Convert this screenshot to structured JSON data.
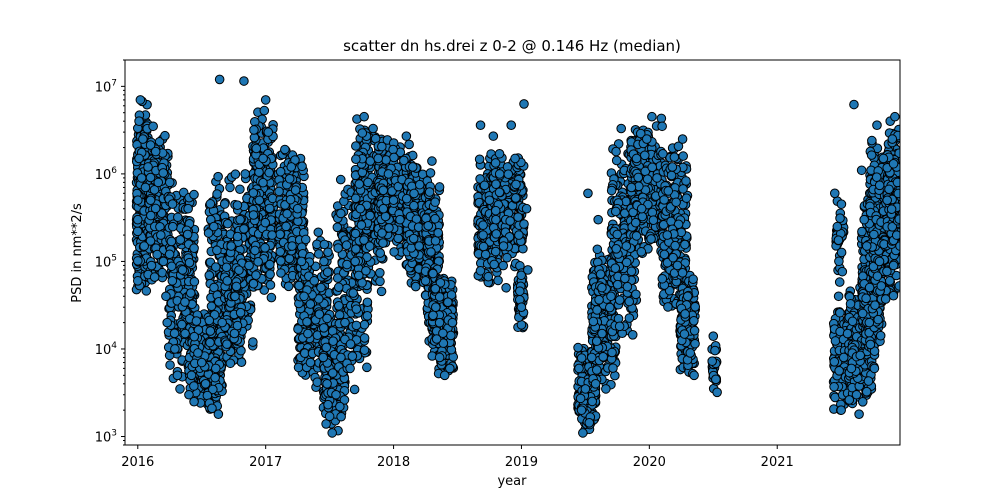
{
  "chart_data": {
    "type": "scatter",
    "title": "scatter dn hs.drei z 0-2 @ 0.146 Hz (median)",
    "xlabel": "year",
    "ylabel": "PSD in nm**2/s",
    "y_scale": "log",
    "xlim": [
      2015.9,
      2021.96
    ],
    "ylim": [
      800,
      20000000
    ],
    "x_ticks": [
      {
        "value": 2016,
        "label": "2016"
      },
      {
        "value": 2017,
        "label": "2017"
      },
      {
        "value": 2018,
        "label": "2018"
      },
      {
        "value": 2019,
        "label": "2019"
      },
      {
        "value": 2020,
        "label": "2020"
      },
      {
        "value": 2021,
        "label": "2021"
      }
    ],
    "y_ticks": [
      {
        "value": 1000,
        "base": "10",
        "exp": "3"
      },
      {
        "value": 10000,
        "base": "10",
        "exp": "4"
      },
      {
        "value": 100000,
        "base": "10",
        "exp": "5"
      },
      {
        "value": 1000000,
        "base": "10",
        "exp": "6"
      },
      {
        "value": 10000000,
        "base": "10",
        "exp": "7"
      }
    ],
    "grid": false,
    "legend": "none",
    "marker_color": "#1f77b4",
    "marker_edge_color": "#000000",
    "series": [
      {
        "points": [
          [
            2016.0,
            60000
          ],
          [
            2016.0,
            300000
          ],
          [
            2016.01,
            1500000
          ],
          [
            2016.01,
            4000000
          ],
          [
            2016.02,
            7000000
          ],
          [
            2016.03,
            900000
          ],
          [
            2016.04,
            2500000
          ],
          [
            2016.05,
            150000
          ],
          [
            2016.06,
            700000
          ],
          [
            2016.08,
            1200000
          ],
          [
            2016.1,
            500000
          ],
          [
            2016.12,
            3500000
          ],
          [
            2016.14,
            1800000
          ],
          [
            2016.16,
            800000
          ],
          [
            2016.18,
            200000
          ],
          [
            2016.2,
            100000
          ],
          [
            2016.22,
            40000
          ],
          [
            2016.23,
            20000
          ],
          [
            2016.25,
            800000
          ],
          [
            2016.27,
            60000
          ],
          [
            2016.29,
            10000
          ],
          [
            2016.31,
            5000
          ],
          [
            2016.33,
            3500
          ],
          [
            2016.35,
            80000
          ],
          [
            2016.37,
            15000
          ],
          [
            2016.4,
            3000
          ],
          [
            2016.42,
            5000
          ],
          [
            2016.44,
            2500
          ],
          [
            2016.47,
            9000
          ],
          [
            2016.5,
            7000
          ],
          [
            2016.53,
            4000
          ],
          [
            2016.56,
            2400
          ],
          [
            2016.58,
            2100
          ],
          [
            2016.61,
            6000
          ],
          [
            2016.63,
            1800
          ],
          [
            2016.64,
            12000000
          ],
          [
            2016.66,
            20000
          ],
          [
            2016.7,
            60000
          ],
          [
            2016.73,
            150000
          ],
          [
            2016.76,
            40000
          ],
          [
            2016.8,
            300000
          ],
          [
            2016.83,
            11500000
          ],
          [
            2016.84,
            1000000
          ],
          [
            2016.87,
            90000
          ],
          [
            2016.9,
            12000
          ],
          [
            2016.95,
            500000
          ],
          [
            2016.98,
            1500000
          ],
          [
            2017.0,
            7000000
          ],
          [
            2017.02,
            3000000
          ],
          [
            2017.05,
            200000
          ],
          [
            2017.15,
            1900000
          ],
          [
            2017.2,
            1200000
          ],
          [
            2017.25,
            400000
          ],
          [
            2017.28,
            100000
          ],
          [
            2017.3,
            40000
          ],
          [
            2017.33,
            15000
          ],
          [
            2017.35,
            7000
          ],
          [
            2017.38,
            60000
          ],
          [
            2017.42,
            25000
          ],
          [
            2017.45,
            8000
          ],
          [
            2017.48,
            4000
          ],
          [
            2017.5,
            1700
          ],
          [
            2017.52,
            1100
          ],
          [
            2017.55,
            3000
          ],
          [
            2017.58,
            2200
          ],
          [
            2017.62,
            20000
          ],
          [
            2017.66,
            6000
          ],
          [
            2017.7,
            100000
          ],
          [
            2017.74,
            400000
          ],
          [
            2017.77,
            4500000
          ],
          [
            2017.8,
            800000
          ],
          [
            2017.84,
            3300000
          ],
          [
            2017.88,
            1500000
          ],
          [
            2017.92,
            400000
          ],
          [
            2017.96,
            1000000
          ],
          [
            2018.0,
            500000
          ],
          [
            2018.05,
            300000
          ],
          [
            2018.1,
            2700000
          ],
          [
            2018.15,
            1200000
          ],
          [
            2018.2,
            150000
          ],
          [
            2018.25,
            60000
          ],
          [
            2018.3,
            1400000
          ],
          [
            2018.33,
            30000
          ],
          [
            2018.36,
            8000
          ],
          [
            2018.4,
            5000
          ],
          [
            2018.44,
            6000
          ],
          [
            2018.46,
            20000
          ],
          [
            2018.68,
            3600000
          ],
          [
            2018.7,
            200000
          ],
          [
            2018.72,
            120000
          ],
          [
            2018.75,
            500000
          ],
          [
            2018.78,
            2700000
          ],
          [
            2018.8,
            300000
          ],
          [
            2018.83,
            1000000
          ],
          [
            2018.86,
            150000
          ],
          [
            2018.88,
            50000
          ],
          [
            2018.92,
            3600000
          ],
          [
            2018.95,
            1500000
          ],
          [
            2018.98,
            200000
          ],
          [
            2019.0,
            30000
          ],
          [
            2019.02,
            6300000
          ],
          [
            2019.04,
            400000
          ],
          [
            2019.05,
            80000
          ],
          [
            2019.45,
            6000
          ],
          [
            2019.47,
            2000
          ],
          [
            2019.48,
            1100
          ],
          [
            2019.5,
            3500
          ],
          [
            2019.52,
            600000
          ],
          [
            2019.55,
            8000
          ],
          [
            2019.58,
            4000
          ],
          [
            2019.6,
            300000
          ],
          [
            2019.63,
            15000
          ],
          [
            2019.66,
            3500
          ],
          [
            2019.7,
            40000
          ],
          [
            2019.74,
            1800000
          ],
          [
            2019.78,
            3300000
          ],
          [
            2019.82,
            150000
          ],
          [
            2019.86,
            700000
          ],
          [
            2019.9,
            1500000
          ],
          [
            2019.94,
            400000
          ],
          [
            2019.98,
            2500000
          ],
          [
            2020.02,
            4500000
          ],
          [
            2020.06,
            900000
          ],
          [
            2020.1,
            3500000
          ],
          [
            2020.14,
            200000
          ],
          [
            2020.18,
            1200000
          ],
          [
            2020.22,
            90000
          ],
          [
            2020.26,
            2500000
          ],
          [
            2020.3,
            40000
          ],
          [
            2020.32,
            9000
          ],
          [
            2020.35,
            5000
          ],
          [
            2020.5,
            14000
          ],
          [
            2020.52,
            4500
          ],
          [
            2020.53,
            3200
          ],
          [
            2021.45,
            600000
          ],
          [
            2021.47,
            250000
          ],
          [
            2021.48,
            40000
          ],
          [
            2021.5,
            2000
          ],
          [
            2021.52,
            8000
          ],
          [
            2021.55,
            15000
          ],
          [
            2021.58,
            6000
          ],
          [
            2021.6,
            6200000
          ],
          [
            2021.62,
            3000
          ],
          [
            2021.64,
            1800
          ],
          [
            2021.66,
            1100000
          ],
          [
            2021.68,
            300000
          ],
          [
            2021.7,
            150000
          ],
          [
            2021.72,
            20000
          ],
          [
            2021.74,
            2400000
          ],
          [
            2021.76,
            6000
          ],
          [
            2021.78,
            3600000
          ],
          [
            2021.8,
            100000
          ],
          [
            2021.83,
            1500000
          ],
          [
            2021.86,
            500000
          ],
          [
            2021.88,
            60000
          ],
          [
            2021.9,
            2500000
          ],
          [
            2021.92,
            4500000
          ],
          [
            2021.94,
            800000
          ],
          [
            2021.96,
            150000
          ]
        ],
        "clusters": [
          {
            "x": [
              2015.99,
              2016.08
            ],
            "y": [
              40000,
              7500000
            ],
            "n": 300
          },
          {
            "x": [
              2016.08,
              2016.24
            ],
            "y": [
              50000,
              3500000
            ],
            "n": 240
          },
          {
            "x": [
              2016.24,
              2016.45
            ],
            "y": [
              4000,
              900000
            ],
            "n": 240
          },
          {
            "x": [
              2016.4,
              2016.66
            ],
            "y": [
              1800,
              30000
            ],
            "n": 280
          },
          {
            "x": [
              2016.55,
              2016.9
            ],
            "y": [
              8000,
              1200000
            ],
            "n": 260
          },
          {
            "x": [
              2016.68,
              2016.82
            ],
            "y": [
              5000,
              300000
            ],
            "n": 120
          },
          {
            "x": [
              2016.9,
              2017.06
            ],
            "y": [
              30000,
              7000000
            ],
            "n": 280
          },
          {
            "x": [
              2017.1,
              2017.3
            ],
            "y": [
              40000,
              2000000
            ],
            "n": 240
          },
          {
            "x": [
              2017.25,
              2017.5
            ],
            "y": [
              3500,
              250000
            ],
            "n": 260
          },
          {
            "x": [
              2017.45,
              2017.62
            ],
            "y": [
              1100,
              30000
            ],
            "n": 240
          },
          {
            "x": [
              2017.55,
              2017.8
            ],
            "y": [
              3000,
              1200000
            ],
            "n": 220
          },
          {
            "x": [
              2017.7,
              2017.92
            ],
            "y": [
              40000,
              4500000
            ],
            "n": 260
          },
          {
            "x": [
              2017.88,
              2018.15
            ],
            "y": [
              100000,
              2800000
            ],
            "n": 300
          },
          {
            "x": [
              2018.1,
              2018.3
            ],
            "y": [
              40000,
              1500000
            ],
            "n": 260
          },
          {
            "x": [
              2018.25,
              2018.36
            ],
            "y": [
              10000,
              1000000
            ],
            "n": 160
          },
          {
            "x": [
              2018.3,
              2018.47
            ],
            "y": [
              4800,
              90000
            ],
            "n": 240
          },
          {
            "x": [
              2018.66,
              2018.82
            ],
            "y": [
              50000,
              1800000
            ],
            "n": 260
          },
          {
            "x": [
              2018.78,
              2019.02
            ],
            "y": [
              80000,
              2000000
            ],
            "n": 200
          },
          {
            "x": [
              2018.97,
              2019.02
            ],
            "y": [
              15000,
              100000
            ],
            "n": 60
          },
          {
            "x": [
              2019.44,
              2019.58
            ],
            "y": [
              1100,
              12000
            ],
            "n": 200
          },
          {
            "x": [
              2019.55,
              2019.74
            ],
            "y": [
              3000,
              150000
            ],
            "n": 240
          },
          {
            "x": [
              2019.7,
              2019.9
            ],
            "y": [
              10000,
              3300000
            ],
            "n": 240
          },
          {
            "x": [
              2019.85,
              2020.1
            ],
            "y": [
              100000,
              4500000
            ],
            "n": 280
          },
          {
            "x": [
              2020.1,
              2020.3
            ],
            "y": [
              20000,
              2500000
            ],
            "n": 220
          },
          {
            "x": [
              2020.24,
              2020.36
            ],
            "y": [
              4500,
              100000
            ],
            "n": 160
          },
          {
            "x": [
              2020.49,
              2020.53
            ],
            "y": [
              3200,
              15000
            ],
            "n": 30
          },
          {
            "x": [
              2021.44,
              2021.6
            ],
            "y": [
              1800,
              30000
            ],
            "n": 220
          },
          {
            "x": [
              2021.46,
              2021.52
            ],
            "y": [
              50000,
              600000
            ],
            "n": 40
          },
          {
            "x": [
              2021.56,
              2021.74
            ],
            "y": [
              2000,
              60000
            ],
            "n": 220
          },
          {
            "x": [
              2021.66,
              2021.82
            ],
            "y": [
              5000,
              600000
            ],
            "n": 240
          },
          {
            "x": [
              2021.72,
              2021.96
            ],
            "y": [
              30000,
              2800000
            ],
            "n": 300
          },
          {
            "x": [
              2021.86,
              2021.96
            ],
            "y": [
              150000,
              4700000
            ],
            "n": 140
          }
        ]
      }
    ]
  }
}
